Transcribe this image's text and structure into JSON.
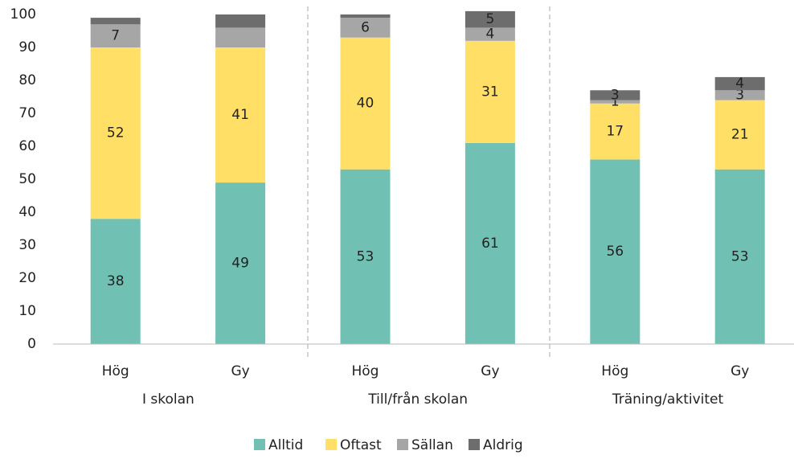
{
  "chart_data": {
    "type": "stacked_bar",
    "categories": [
      "Hög",
      "Gy",
      "Hög",
      "Gy",
      "Hög",
      "Gy"
    ],
    "groups": [
      "I skolan",
      "Till/från skolan",
      "Träning/aktivitet"
    ],
    "series": [
      {
        "name": "Alltid",
        "color": "#70c1b3",
        "values": [
          38,
          49,
          53,
          61,
          56,
          53
        ],
        "value_labels": [
          "38",
          "49",
          "53",
          "61",
          "56",
          "53"
        ]
      },
      {
        "name": "Oftast",
        "color": "#ffdf66",
        "values": [
          52,
          41,
          40,
          31,
          17,
          21
        ],
        "value_labels": [
          "52",
          "41",
          "40",
          "31",
          "17",
          "21"
        ]
      },
      {
        "name": "Sällan",
        "color": "#a6a6a6",
        "values": [
          7,
          6,
          6,
          4,
          1,
          3
        ],
        "value_labels": [
          "7",
          null,
          "6",
          "4",
          "1",
          "3"
        ]
      },
      {
        "name": "Aldrig",
        "color": "#6d6d6d",
        "values": [
          2,
          4,
          1,
          5,
          3,
          4
        ],
        "value_labels": [
          null,
          null,
          null,
          "5",
          "3",
          "4"
        ]
      }
    ],
    "ylim": [
      0,
      100
    ],
    "yticks": [
      0,
      10,
      20,
      30,
      40,
      50,
      60,
      70,
      80,
      90,
      100
    ],
    "grid": false,
    "legend": "bottom"
  }
}
